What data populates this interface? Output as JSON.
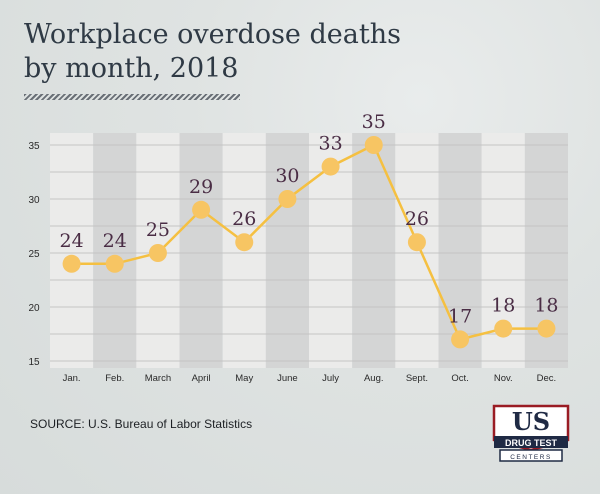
{
  "title_line1": "Workplace overdose deaths",
  "title_line2": "by month, 2018",
  "source": "SOURCE: U.S. Bureau of Labor Statistics",
  "logo": {
    "main": "US",
    "sub": "DRUG TEST",
    "tag": "CENTERS"
  },
  "colors": {
    "line": "#f5c041",
    "point": "#f7c563",
    "label": "#4a2d45",
    "band_dark": "#d4d5d5",
    "band_light": "#ebebea"
  },
  "chart_data": {
    "type": "line",
    "categories": [
      "Jan.",
      "Feb.",
      "March",
      "April",
      "May",
      "June",
      "July",
      "Aug.",
      "Sept.",
      "Oct.",
      "Nov.",
      "Dec."
    ],
    "values": [
      24,
      24,
      25,
      29,
      26,
      30,
      33,
      35,
      26,
      17,
      18,
      18
    ],
    "data_labels": [
      "24",
      "24",
      "25",
      "29",
      "26",
      "30",
      "33",
      "35",
      "26",
      "17",
      "18",
      "18"
    ],
    "yticks": [
      "15",
      "20",
      "25",
      "30",
      "35"
    ],
    "ylim": [
      15,
      35
    ],
    "grid": true
  }
}
